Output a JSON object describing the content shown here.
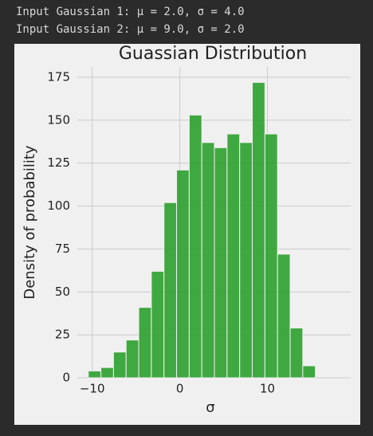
{
  "console": [
    "Input Gaussian 1: μ = 2.0, σ = 4.0",
    "Input Gaussian 2: μ = 9.0, σ = 2.0"
  ],
  "chart_data": {
    "type": "histogram",
    "title": "Guassian Distribution",
    "x_label": "σ",
    "y_label": "Density of probability",
    "bins": [
      -10.45,
      -9.01,
      -7.57,
      -6.13,
      -4.69,
      -3.25,
      -1.81,
      -0.37,
      1.07,
      2.51,
      3.95,
      5.39,
      6.83,
      8.27,
      9.71,
      11.15,
      12.59,
      14.03,
      15.47
    ],
    "values": [
      4,
      6,
      15,
      22,
      41,
      62,
      102,
      121,
      153,
      137,
      134,
      142,
      137,
      172,
      142,
      72,
      29,
      7
    ],
    "color": "#2ca02c",
    "xlim": [
      -11.7,
      19.5
    ],
    "xticks": [
      {
        "value": -10,
        "label": "−10"
      },
      0,
      10
    ],
    "ylim": [
      0,
      181
    ],
    "yticks": [
      0,
      25,
      50,
      75,
      100,
      125,
      150,
      175
    ],
    "grid": true
  }
}
